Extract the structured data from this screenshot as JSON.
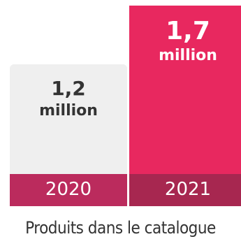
{
  "chart_data": {
    "type": "bar",
    "categories": [
      "2020",
      "2021"
    ],
    "values": [
      1.2,
      1.7
    ],
    "value_labels": [
      {
        "number": "1,2",
        "unit": "million"
      },
      {
        "number": "1,7",
        "unit": "million"
      }
    ],
    "caption": "Produits dans le catalogue",
    "ylim": [
      0,
      1.7
    ]
  },
  "colors": {
    "bar_2020": "#efefef",
    "bar_2021": "#e8285f",
    "label_band_2020": "#bb2b5d",
    "label_band_2021": "#a72750",
    "value_text_2020": "#333333",
    "value_text_2021": "#ffffff"
  }
}
